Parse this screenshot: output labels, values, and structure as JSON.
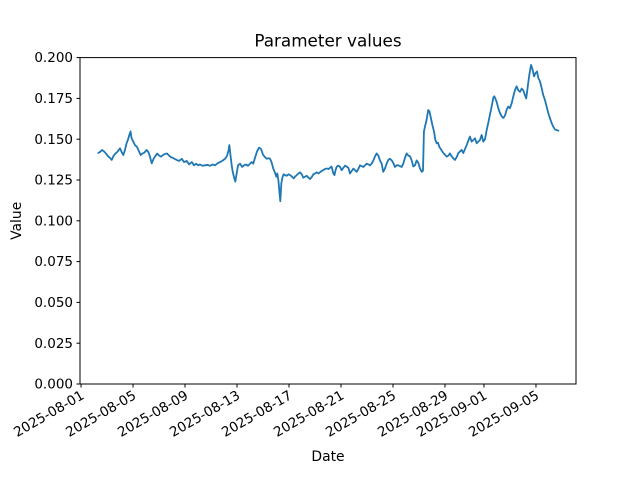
{
  "figure": {
    "title": "Parameter values",
    "xlabel": "Date",
    "ylabel": "Value"
  },
  "chart_data": {
    "type": "line",
    "title": "Parameter values",
    "xlabel": "Date",
    "ylabel": "Value",
    "grid": false,
    "legend": null,
    "line_color": "#1f77b4",
    "axis_color": "#000000",
    "background_color": "#ffffff",
    "ylim": [
      0.0,
      0.2
    ],
    "yticks": {
      "values": [
        0.0,
        0.025,
        0.05,
        0.075,
        0.1,
        0.125,
        0.15,
        0.175,
        0.2
      ],
      "labels": [
        "0.000",
        "0.025",
        "0.050",
        "0.075",
        "0.100",
        "0.125",
        "0.150",
        "0.175",
        "0.200"
      ]
    },
    "x_unit": "days since 2025-08-01 00:00",
    "xlim_days": [
      -0.08,
      38.08
    ],
    "xticks": {
      "days": [
        0,
        4,
        8,
        12,
        16,
        20,
        24,
        28,
        31,
        35
      ],
      "labels": [
        "2025-08-01",
        "2025-08-05",
        "2025-08-09",
        "2025-08-13",
        "2025-08-17",
        "2025-08-21",
        "2025-08-25",
        "2025-08-29",
        "2025-09-01",
        "2025-09-05"
      ],
      "rotation_deg": 30
    },
    "series": [
      {
        "name": "parameter-values",
        "points": [
          [
            1.33,
            0.1416
          ],
          [
            1.46,
            0.1422
          ],
          [
            1.62,
            0.1434
          ],
          [
            1.77,
            0.1425
          ],
          [
            1.92,
            0.1412
          ],
          [
            2.08,
            0.1395
          ],
          [
            2.23,
            0.1385
          ],
          [
            2.36,
            0.1373
          ],
          [
            2.5,
            0.1398
          ],
          [
            2.65,
            0.1412
          ],
          [
            2.81,
            0.1424
          ],
          [
            2.92,
            0.1436
          ],
          [
            3.0,
            0.1444
          ],
          [
            3.12,
            0.1422
          ],
          [
            3.25,
            0.1403
          ],
          [
            3.38,
            0.1434
          ],
          [
            3.5,
            0.1475
          ],
          [
            3.62,
            0.1499
          ],
          [
            3.73,
            0.153
          ],
          [
            3.81,
            0.1548
          ],
          [
            3.88,
            0.1508
          ],
          [
            4.0,
            0.1488
          ],
          [
            4.15,
            0.1464
          ],
          [
            4.31,
            0.1452
          ],
          [
            4.46,
            0.1425
          ],
          [
            4.58,
            0.1403
          ],
          [
            4.73,
            0.1412
          ],
          [
            4.88,
            0.1418
          ],
          [
            5.04,
            0.1434
          ],
          [
            5.19,
            0.142
          ],
          [
            5.31,
            0.139
          ],
          [
            5.44,
            0.1352
          ],
          [
            5.58,
            0.138
          ],
          [
            5.73,
            0.1398
          ],
          [
            5.85,
            0.1412
          ],
          [
            6.0,
            0.14
          ],
          [
            6.15,
            0.1393
          ],
          [
            6.31,
            0.1403
          ],
          [
            6.46,
            0.141
          ],
          [
            6.62,
            0.1412
          ],
          [
            6.77,
            0.14
          ],
          [
            6.92,
            0.139
          ],
          [
            7.08,
            0.1385
          ],
          [
            7.23,
            0.1378
          ],
          [
            7.38,
            0.1372
          ],
          [
            7.54,
            0.1367
          ],
          [
            7.75,
            0.138
          ],
          [
            7.92,
            0.136
          ],
          [
            8.13,
            0.1367
          ],
          [
            8.31,
            0.1346
          ],
          [
            8.52,
            0.136
          ],
          [
            8.69,
            0.134
          ],
          [
            8.85,
            0.135
          ],
          [
            9.0,
            0.134
          ],
          [
            9.15,
            0.1345
          ],
          [
            9.35,
            0.1337
          ],
          [
            9.54,
            0.134
          ],
          [
            9.73,
            0.1343
          ],
          [
            9.92,
            0.1337
          ],
          [
            10.12,
            0.1345
          ],
          [
            10.31,
            0.134
          ],
          [
            10.5,
            0.1352
          ],
          [
            10.69,
            0.136
          ],
          [
            10.88,
            0.1368
          ],
          [
            11.08,
            0.138
          ],
          [
            11.23,
            0.1398
          ],
          [
            11.35,
            0.1432
          ],
          [
            11.41,
            0.1464
          ],
          [
            11.5,
            0.14
          ],
          [
            11.59,
            0.134
          ],
          [
            11.67,
            0.13
          ],
          [
            11.79,
            0.126
          ],
          [
            11.87,
            0.124
          ],
          [
            11.95,
            0.128
          ],
          [
            12.08,
            0.134
          ],
          [
            12.23,
            0.135
          ],
          [
            12.4,
            0.133
          ],
          [
            12.54,
            0.134
          ],
          [
            12.69,
            0.1345
          ],
          [
            12.85,
            0.1337
          ],
          [
            13.0,
            0.135
          ],
          [
            13.13,
            0.136
          ],
          [
            13.25,
            0.135
          ],
          [
            13.38,
            0.1385
          ],
          [
            13.54,
            0.1425
          ],
          [
            13.69,
            0.1448
          ],
          [
            13.85,
            0.144
          ],
          [
            14.0,
            0.1405
          ],
          [
            14.15,
            0.139
          ],
          [
            14.28,
            0.138
          ],
          [
            14.42,
            0.1383
          ],
          [
            14.54,
            0.138
          ],
          [
            14.65,
            0.136
          ],
          [
            14.79,
            0.132
          ],
          [
            14.92,
            0.1295
          ],
          [
            15.02,
            0.127
          ],
          [
            15.1,
            0.129
          ],
          [
            15.18,
            0.125
          ],
          [
            15.26,
            0.118
          ],
          [
            15.33,
            0.112
          ],
          [
            15.41,
            0.123
          ],
          [
            15.51,
            0.127
          ],
          [
            15.59,
            0.1285
          ],
          [
            15.69,
            0.128
          ],
          [
            15.82,
            0.1276
          ],
          [
            15.96,
            0.1285
          ],
          [
            16.08,
            0.128
          ],
          [
            16.23,
            0.127
          ],
          [
            16.36,
            0.126
          ],
          [
            16.46,
            0.127
          ],
          [
            16.59,
            0.128
          ],
          [
            16.73,
            0.129
          ],
          [
            16.85,
            0.1297
          ],
          [
            16.98,
            0.1285
          ],
          [
            17.1,
            0.1264
          ],
          [
            17.23,
            0.127
          ],
          [
            17.36,
            0.1276
          ],
          [
            17.5,
            0.1264
          ],
          [
            17.62,
            0.1256
          ],
          [
            17.77,
            0.127
          ],
          [
            17.87,
            0.1285
          ],
          [
            18.0,
            0.129
          ],
          [
            18.13,
            0.1297
          ],
          [
            18.27,
            0.129
          ],
          [
            18.38,
            0.1297
          ],
          [
            18.51,
            0.1305
          ],
          [
            18.64,
            0.1311
          ],
          [
            18.77,
            0.1317
          ],
          [
            18.9,
            0.1321
          ],
          [
            19.04,
            0.1317
          ],
          [
            19.15,
            0.1325
          ],
          [
            19.28,
            0.1332
          ],
          [
            19.41,
            0.129
          ],
          [
            19.5,
            0.128
          ],
          [
            19.58,
            0.131
          ],
          [
            19.67,
            0.1332
          ],
          [
            19.79,
            0.1338
          ],
          [
            19.92,
            0.1332
          ],
          [
            20.05,
            0.131
          ],
          [
            20.18,
            0.1325
          ],
          [
            20.31,
            0.1338
          ],
          [
            20.44,
            0.1332
          ],
          [
            20.58,
            0.1323
          ],
          [
            20.69,
            0.129
          ],
          [
            20.82,
            0.1305
          ],
          [
            20.95,
            0.132
          ],
          [
            21.08,
            0.131
          ],
          [
            21.21,
            0.13
          ],
          [
            21.35,
            0.132
          ],
          [
            21.46,
            0.134
          ],
          [
            21.59,
            0.1335
          ],
          [
            21.72,
            0.133
          ],
          [
            21.85,
            0.134
          ],
          [
            21.97,
            0.135
          ],
          [
            22.12,
            0.1345
          ],
          [
            22.23,
            0.134
          ],
          [
            22.36,
            0.135
          ],
          [
            22.49,
            0.137
          ],
          [
            22.62,
            0.1395
          ],
          [
            22.74,
            0.1413
          ],
          [
            22.87,
            0.14
          ],
          [
            23.0,
            0.137
          ],
          [
            23.13,
            0.135
          ],
          [
            23.25,
            0.13
          ],
          [
            23.38,
            0.132
          ],
          [
            23.51,
            0.135
          ],
          [
            23.64,
            0.1373
          ],
          [
            23.77,
            0.138
          ],
          [
            23.9,
            0.137
          ],
          [
            24.02,
            0.1355
          ],
          [
            24.15,
            0.133
          ],
          [
            24.28,
            0.134
          ],
          [
            24.41,
            0.134
          ],
          [
            24.54,
            0.1335
          ],
          [
            24.67,
            0.133
          ],
          [
            24.79,
            0.135
          ],
          [
            24.92,
            0.1385
          ],
          [
            25.05,
            0.1413
          ],
          [
            25.18,
            0.14
          ],
          [
            25.31,
            0.1395
          ],
          [
            25.44,
            0.137
          ],
          [
            25.56,
            0.1333
          ],
          [
            25.69,
            0.134
          ],
          [
            25.82,
            0.137
          ],
          [
            25.95,
            0.1355
          ],
          [
            26.08,
            0.132
          ],
          [
            26.21,
            0.13
          ],
          [
            26.31,
            0.1307
          ],
          [
            26.38,
            0.1546
          ],
          [
            26.46,
            0.1577
          ],
          [
            26.59,
            0.162
          ],
          [
            26.71,
            0.1679
          ],
          [
            26.81,
            0.1669
          ],
          [
            26.92,
            0.1628
          ],
          [
            27.03,
            0.1587
          ],
          [
            27.16,
            0.1546
          ],
          [
            27.26,
            0.1495
          ],
          [
            27.36,
            0.1475
          ],
          [
            27.46,
            0.1479
          ],
          [
            27.56,
            0.1454
          ],
          [
            27.69,
            0.1438
          ],
          [
            27.8,
            0.1424
          ],
          [
            27.9,
            0.1413
          ],
          [
            28.0,
            0.1405
          ],
          [
            28.13,
            0.1393
          ],
          [
            28.27,
            0.14
          ],
          [
            28.38,
            0.1413
          ],
          [
            28.51,
            0.1395
          ],
          [
            28.64,
            0.1383
          ],
          [
            28.77,
            0.1373
          ],
          [
            28.9,
            0.139
          ],
          [
            29.02,
            0.1413
          ],
          [
            29.15,
            0.1425
          ],
          [
            29.28,
            0.1434
          ],
          [
            29.41,
            0.1415
          ],
          [
            29.54,
            0.144
          ],
          [
            29.67,
            0.1464
          ],
          [
            29.79,
            0.149
          ],
          [
            29.92,
            0.1516
          ],
          [
            30.05,
            0.1485
          ],
          [
            30.18,
            0.1495
          ],
          [
            30.31,
            0.1505
          ],
          [
            30.44,
            0.1475
          ],
          [
            30.56,
            0.1485
          ],
          [
            30.69,
            0.1495
          ],
          [
            30.82,
            0.1526
          ],
          [
            30.95,
            0.1485
          ],
          [
            31.08,
            0.15
          ],
          [
            31.21,
            0.1556
          ],
          [
            31.33,
            0.16
          ],
          [
            31.46,
            0.165
          ],
          [
            31.59,
            0.17
          ],
          [
            31.72,
            0.1755
          ],
          [
            31.8,
            0.1763
          ],
          [
            31.97,
            0.173
          ],
          [
            32.1,
            0.169
          ],
          [
            32.23,
            0.166
          ],
          [
            32.36,
            0.164
          ],
          [
            32.49,
            0.163
          ],
          [
            32.62,
            0.1645
          ],
          [
            32.74,
            0.168
          ],
          [
            32.87,
            0.17
          ],
          [
            33.0,
            0.169
          ],
          [
            33.13,
            0.172
          ],
          [
            33.25,
            0.176
          ],
          [
            33.38,
            0.18
          ],
          [
            33.51,
            0.1824
          ],
          [
            33.64,
            0.18
          ],
          [
            33.77,
            0.179
          ],
          [
            33.9,
            0.181
          ],
          [
            34.02,
            0.18
          ],
          [
            34.15,
            0.177
          ],
          [
            34.25,
            0.175
          ],
          [
            34.38,
            0.183
          ],
          [
            34.5,
            0.19
          ],
          [
            34.62,
            0.1955
          ],
          [
            34.73,
            0.193
          ],
          [
            34.85,
            0.1885
          ],
          [
            34.96,
            0.1905
          ],
          [
            35.08,
            0.1915
          ],
          [
            35.18,
            0.1875
          ],
          [
            35.31,
            0.1855
          ],
          [
            35.44,
            0.1812
          ],
          [
            35.56,
            0.177
          ],
          [
            35.69,
            0.174
          ],
          [
            35.82,
            0.17
          ],
          [
            35.95,
            0.166
          ],
          [
            36.08,
            0.1628
          ],
          [
            36.21,
            0.1598
          ],
          [
            36.33,
            0.1577
          ],
          [
            36.46,
            0.156
          ],
          [
            36.59,
            0.1556
          ],
          [
            36.72,
            0.1552
          ]
        ]
      }
    ]
  }
}
